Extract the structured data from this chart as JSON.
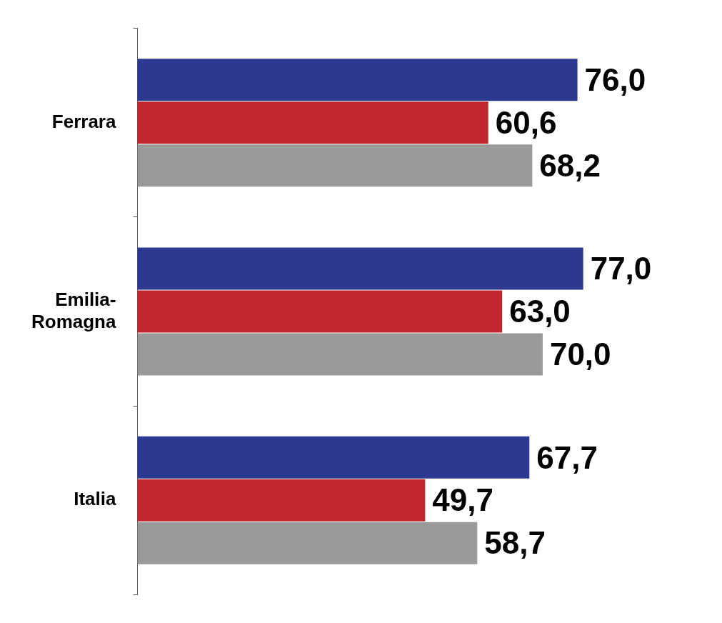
{
  "chart_data": {
    "type": "bar",
    "orientation": "horizontal",
    "categories": [
      "Ferrara",
      "Emilia-\nRomagna",
      "Italia"
    ],
    "series": [
      {
        "color": "#2b3990",
        "values": [
          76.0,
          77.0,
          67.7
        ],
        "value_labels": [
          "76,0",
          "77,0",
          "67,7"
        ]
      },
      {
        "color": "#c1272d",
        "values": [
          60.6,
          63.0,
          49.7
        ],
        "value_labels": [
          "60,6",
          "63,0",
          "49,7"
        ]
      },
      {
        "color": "#9a9a9a",
        "values": [
          68.2,
          70.0,
          58.7
        ],
        "value_labels": [
          "68,2",
          "70,0",
          "58,7"
        ]
      }
    ],
    "legend": false,
    "tick_labels": "y"
  }
}
